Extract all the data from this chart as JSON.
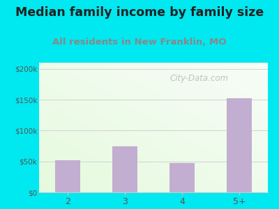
{
  "title": "Median family income by family size",
  "subtitle": "All residents in New Franklin, MO",
  "categories": [
    "2",
    "3",
    "4",
    "5+"
  ],
  "values": [
    52000,
    75000,
    47000,
    152000
  ],
  "bar_color": "#c2aed0",
  "title_fontsize": 12.5,
  "subtitle_fontsize": 9.5,
  "subtitle_color": "#888888",
  "title_color": "#222222",
  "yticks": [
    0,
    50000,
    100000,
    150000,
    200000
  ],
  "ytick_labels": [
    "$0",
    "$50k",
    "$100k",
    "$150k",
    "$200k"
  ],
  "tick_color": "#555555",
  "background_outer": "#00e8f0",
  "grid_color": "#cccccc",
  "watermark": "City-Data.com",
  "ylim": [
    0,
    210000
  ],
  "bg_topleft": "#d4edd4",
  "bg_topright": "#f0f5f0",
  "bg_bottomleft": "#e8f5e2",
  "bg_bottomright": "#f8fff5"
}
